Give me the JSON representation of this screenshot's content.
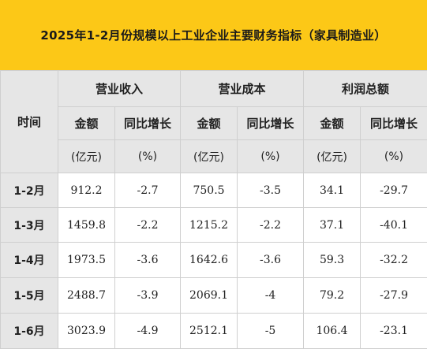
{
  "title": "2025年1-2月份规模以上工业企业主要财务指标（家具制造业）",
  "header": {
    "time": "时间",
    "groups": [
      "营业收入",
      "营业成本",
      "利润总额"
    ],
    "amount_label": "金额",
    "yoy_label": "同比增长",
    "amount_unit": "(亿元)",
    "yoy_unit": "(%)"
  },
  "rows": [
    {
      "month": "1-2月",
      "values": [
        "912.2",
        "-2.7",
        "750.5",
        "-3.5",
        "34.1",
        "-29.7"
      ]
    },
    {
      "month": "1-3月",
      "values": [
        "1459.8",
        "-2.2",
        "1215.2",
        "-2.2",
        "37.1",
        "-40.1"
      ]
    },
    {
      "month": "1-4月",
      "values": [
        "1973.5",
        "-3.6",
        "1642.6",
        "-3.6",
        "59.3",
        "-32.2"
      ]
    },
    {
      "month": "1-5月",
      "values": [
        "2488.7",
        "-3.9",
        "2069.1",
        "-4",
        "79.2",
        "-27.9"
      ]
    },
    {
      "month": "1-6月",
      "values": [
        "3023.9",
        "-4.9",
        "2512.1",
        "-5",
        "106.4",
        "-23.1"
      ]
    }
  ]
}
